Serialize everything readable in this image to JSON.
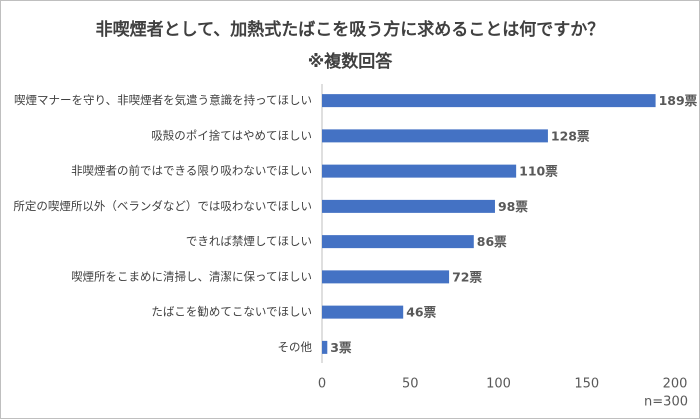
{
  "chart_data": {
    "type": "bar",
    "orientation": "horizontal",
    "title": "非喫煙者として、加熱式たばこを吸う方に求めることは何ですか？",
    "subtitle": "※複数回答",
    "categories": [
      "喫煙マナーを守り、非喫煙者を気遣う意識を持ってほしい",
      "吸殻のポイ捨てはやめてほしい",
      "非喫煙者の前ではできる限り吸わないでほしい",
      "所定の喫煙所以外（ベランダなど）では吸わないでほしい",
      "できれば禁煙してほしい",
      "喫煙所をこまめに清掃し、清潔に保ってほしい",
      "たばこを勧めてこないでほしい",
      "その他"
    ],
    "values": [
      189,
      128,
      110,
      98,
      86,
      72,
      46,
      3
    ],
    "value_labels": [
      "189票",
      "128票",
      "110票",
      "98票",
      "86票",
      "72票",
      "46票",
      "3票"
    ],
    "color": "#4472c4",
    "xlim": [
      0,
      200
    ],
    "xticks": [
      0,
      50,
      100,
      150,
      200
    ],
    "grid": false,
    "annotation": "n=300"
  }
}
